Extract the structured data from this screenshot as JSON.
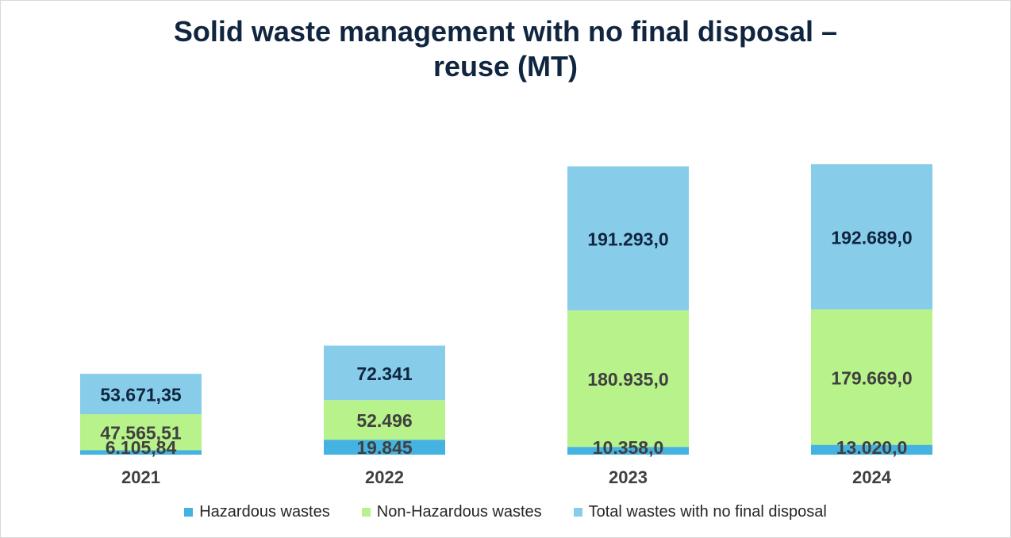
{
  "chart_data": {
    "type": "bar",
    "stacked": true,
    "title_lines": [
      "Solid waste management with no final disposal –",
      "reuse (MT)"
    ],
    "categories": [
      "2021",
      "2022",
      "2023",
      "2024"
    ],
    "series": [
      {
        "name": "Hazardous wastes",
        "color": "#44b3e1",
        "values": [
          6105.84,
          19845,
          10358.0,
          13020.0
        ],
        "labels": [
          "6.105,84",
          "19.845",
          "10.358,0",
          "13.020,0"
        ]
      },
      {
        "name": "Non-Hazardous wastes",
        "color": "#b8f28a",
        "values": [
          47565.51,
          52496,
          180935.0,
          179669.0
        ],
        "labels": [
          "47.565,51",
          "52.496",
          "180.935,0",
          "179.669,0"
        ]
      },
      {
        "name": "Total wastes with no final disposal",
        "color": "#87cde9",
        "values": [
          53671.35,
          72341,
          191293.0,
          192689.0
        ],
        "labels": [
          "53.671,35",
          "72.341",
          "191.293,0",
          "192.689,0"
        ]
      }
    ],
    "legend_position": "bottom",
    "grid": false,
    "ylim": [
      0,
      400000
    ]
  }
}
